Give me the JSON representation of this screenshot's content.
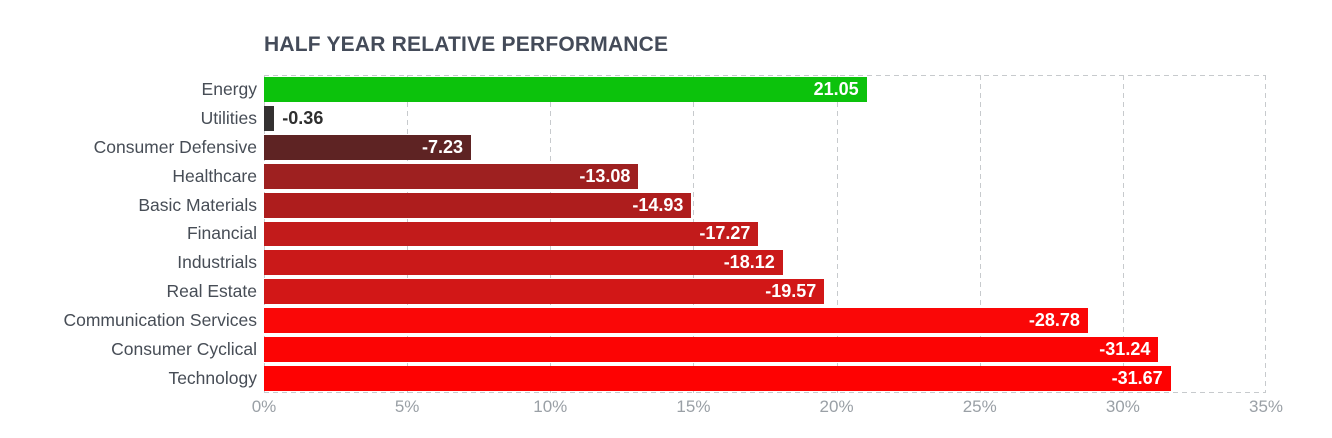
{
  "chart_data": {
    "type": "bar",
    "orientation": "horizontal",
    "title": "HALF YEAR RELATIVE PERFORMANCE",
    "categories": [
      "Energy",
      "Utilities",
      "Consumer Defensive",
      "Healthcare",
      "Basic Materials",
      "Financial",
      "Industrials",
      "Real Estate",
      "Communication Services",
      "Consumer Cyclical",
      "Technology"
    ],
    "values": [
      21.05,
      -0.36,
      -7.23,
      -13.08,
      -14.93,
      -17.27,
      -18.12,
      -19.57,
      -28.78,
      -31.24,
      -31.67
    ],
    "value_labels": [
      "21.05",
      "-0.36",
      "-7.23",
      "-13.08",
      "-14.93",
      "-17.27",
      "-18.12",
      "-19.57",
      "-28.78",
      "-31.24",
      "-31.67"
    ],
    "bar_colors": [
      "#0cc20c",
      "#343131",
      "#5e2323",
      "#9e2020",
      "#ae1d1d",
      "#c21b1b",
      "#ca1919",
      "#d21717",
      "#fa0707",
      "#fc0404",
      "#fe0202"
    ],
    "xlabel": "",
    "ylabel": "",
    "x_ticks": [
      "0%",
      "5%",
      "10%",
      "15%",
      "20%",
      "25%",
      "30%",
      "35%"
    ],
    "xlim": [
      0,
      35
    ],
    "grid": "vertical-dashed",
    "legend": "none",
    "bar_length_encoding": "absolute value of percentage"
  },
  "colors": {
    "background": "#ffffff",
    "title_text": "#444b59",
    "category_text": "#474d56",
    "tick_text": "#9aa0a6",
    "grid_line": "#c7cacd",
    "value_text_inside": "#ffffff",
    "value_text_outside": "#2e2e2e",
    "positive_bar": "#0cc20c",
    "negative_bar_max": "#fe0202"
  }
}
